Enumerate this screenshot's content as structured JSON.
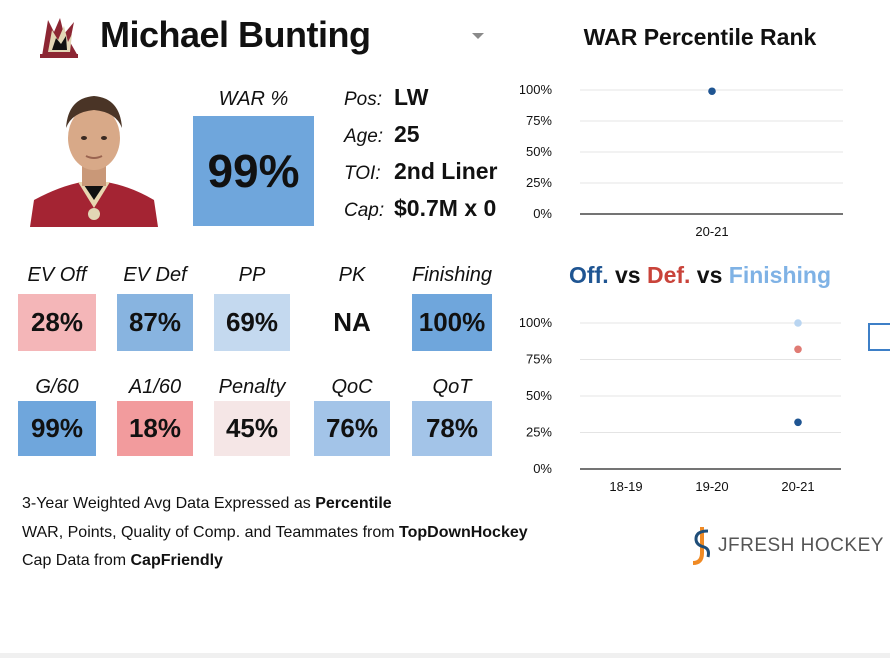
{
  "header": {
    "player_name": "Michael Bunting"
  },
  "war": {
    "label": "WAR %",
    "value": "99%",
    "color": "#6fa6dc"
  },
  "info": [
    {
      "key": "Pos:",
      "value": "LW"
    },
    {
      "key": "Age:",
      "value": "25"
    },
    {
      "key": "TOI:",
      "value": "2nd Liner"
    },
    {
      "key": "Cap:",
      "value": "$0.7M x 0"
    }
  ],
  "stats_row1": [
    {
      "label": "EV Off",
      "value": "28%",
      "color": "#f4b6b8"
    },
    {
      "label": "EV Def",
      "value": "87%",
      "color": "#88b4e0"
    },
    {
      "label": "PP",
      "value": "69%",
      "color": "#c4d9ef"
    },
    {
      "label": "PK",
      "value": "NA",
      "color": "#ffffff"
    },
    {
      "label": "Finishing",
      "value": "100%",
      "color": "#6fa6dc"
    }
  ],
  "stats_row2": [
    {
      "label": "G/60",
      "value": "99%",
      "color": "#6fa6dc"
    },
    {
      "label": "A1/60",
      "value": "18%",
      "color": "#f29b9d"
    },
    {
      "label": "Penalty",
      "value": "45%",
      "color": "#f5e6e6"
    },
    {
      "label": "QoC",
      "value": "76%",
      "color": "#a3c4e8"
    },
    {
      "label": "QoT",
      "value": "78%",
      "color": "#a3c4e8"
    }
  ],
  "footnotes": {
    "line1_text": "3-Year Weighted Avg Data Expressed as ",
    "line1_bold": "Percentile",
    "line2_text": "WAR, Points, Quality of Comp. and Teammates from ",
    "line2_bold": "TopDownHockey",
    "line3_text": "Cap Data from ",
    "line3_bold": "CapFriendly"
  },
  "brand": {
    "name": "JFRESH HOCKEY"
  },
  "chart_data": [
    {
      "type": "scatter",
      "title": "WAR Percentile Rank",
      "x": [
        "20-21"
      ],
      "y_ticks": [
        "100%",
        "75%",
        "50%",
        "25%",
        "0%"
      ],
      "ylim": [
        0,
        100
      ],
      "series": [
        {
          "values": [
            99
          ],
          "color": "#1f5592"
        }
      ],
      "grid": true
    },
    {
      "type": "scatter",
      "title_parts": [
        {
          "text": "Off.",
          "color": "#1f5592"
        },
        {
          "text": " vs ",
          "color": "#111111"
        },
        {
          "text": "Def.",
          "color": "#c9433a"
        },
        {
          "text": " vs ",
          "color": "#111111"
        },
        {
          "text": "Finishing",
          "color": "#7fb2e5"
        }
      ],
      "x": [
        "18-19",
        "19-20",
        "20-21"
      ],
      "y_ticks": [
        "100%",
        "75%",
        "50%",
        "25%",
        "0%"
      ],
      "ylim": [
        0,
        100
      ],
      "series": [
        {
          "name": "Off.",
          "color": "#1f5592",
          "values": [
            null,
            null,
            32
          ]
        },
        {
          "name": "Def.",
          "color": "#e07b74",
          "values": [
            null,
            null,
            82
          ]
        },
        {
          "name": "Finishing",
          "color": "#b9d5f1",
          "values": [
            null,
            null,
            100
          ]
        }
      ],
      "grid": true
    }
  ]
}
